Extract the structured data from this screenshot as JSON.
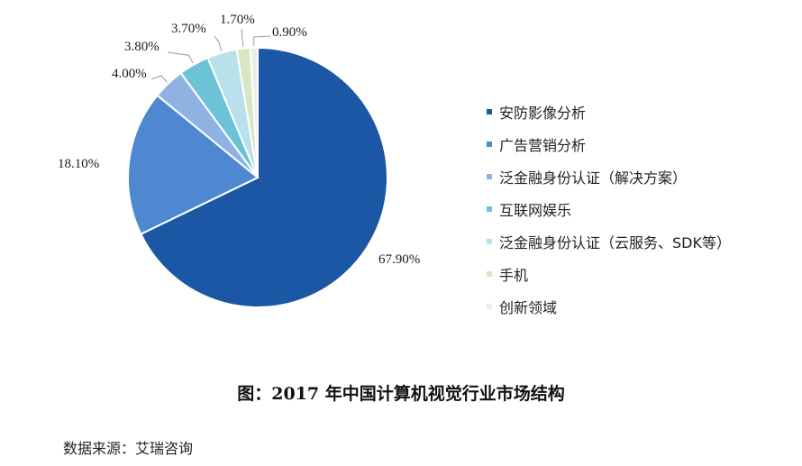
{
  "chart_data": {
    "type": "pie",
    "slices": [
      {
        "name": "安防影像分析",
        "value": 67.9,
        "label": "67.90%",
        "color": "#1b57a5"
      },
      {
        "name": "广告营销分析",
        "value": 18.1,
        "label": "18.10%",
        "color": "#4e88d1"
      },
      {
        "name": "泛金融身份认证（解决方案）",
        "value": 4.0,
        "label": "4.00%",
        "color": "#8fb2e3"
      },
      {
        "name": "互联网娱乐",
        "value": 3.8,
        "label": "3.80%",
        "color": "#6cc3d7"
      },
      {
        "name": "泛金融身份认证（云服务、SDK等）",
        "value": 3.7,
        "label": "3.70%",
        "color": "#b8e1ec"
      },
      {
        "name": "手机",
        "value": 1.7,
        "label": "1.70%",
        "color": "#d7e6c3"
      },
      {
        "name": "创新领域",
        "value": 0.9,
        "label": "0.90%",
        "color": "#e9eee6"
      }
    ],
    "legend_position": "right"
  },
  "caption": "图：2017 年中国计算机视觉行业市场结构",
  "source": "数据来源：艾瑞咨询"
}
